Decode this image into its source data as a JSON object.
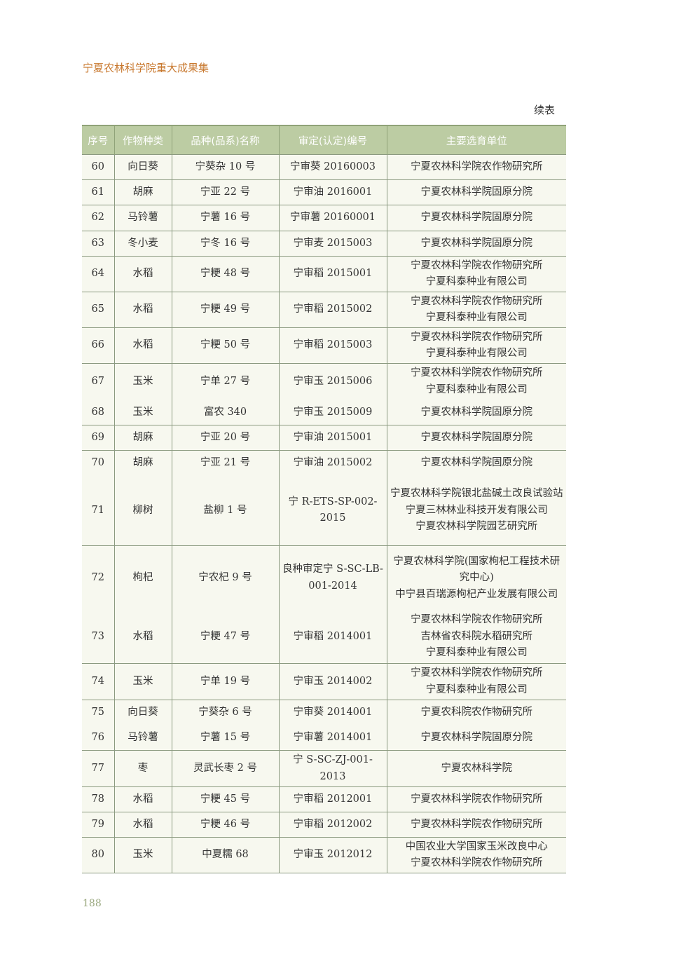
{
  "running_header": "宁夏农林科学院重大成果集",
  "continued_label": "续表",
  "page_number": "188",
  "table": {
    "headers": [
      "序号",
      "作物种类",
      "品种(品系)名称",
      "审定(认定)编号",
      "主要选育单位"
    ],
    "rows": [
      [
        "60",
        "向日葵",
        "宁葵杂 10 号",
        "宁审葵 20160003",
        [
          "宁夏农林科学院农作物研究所"
        ]
      ],
      [
        "61",
        "胡麻",
        "宁亚 22 号",
        "宁审油 2016001",
        [
          "宁夏农林科学院固原分院"
        ]
      ],
      [
        "62",
        "马铃薯",
        "宁薯 16 号",
        "宁审薯 20160001",
        [
          "宁夏农林科学院固原分院"
        ]
      ],
      [
        "63",
        "冬小麦",
        "宁冬 16 号",
        "宁审麦 2015003",
        [
          "宁夏农林科学院固原分院"
        ]
      ],
      [
        "64",
        "水稻",
        "宁粳 48 号",
        "宁审稻 2015001",
        [
          "宁夏农林科学院农作物研究所",
          "宁夏科泰种业有限公司"
        ]
      ],
      [
        "65",
        "水稻",
        "宁粳 49 号",
        "宁审稻 2015002",
        [
          "宁夏农林科学院农作物研究所",
          "宁夏科泰种业有限公司"
        ]
      ],
      [
        "66",
        "水稻",
        "宁粳 50 号",
        "宁审稻 2015003",
        [
          "宁夏农林科学院农作物研究所",
          "宁夏科泰种业有限公司"
        ]
      ],
      [
        "67",
        "玉米",
        "宁单 27 号",
        "宁审玉 2015006",
        [
          "宁夏农林科学院农作物研究所",
          "宁夏科泰种业有限公司"
        ]
      ],
      [
        "68",
        "玉米",
        "富农 340",
        "宁审玉 2015009",
        [
          "宁夏农林科学院固原分院"
        ]
      ],
      [
        "69",
        "胡麻",
        "宁亚 20 号",
        "宁审油 2015001",
        [
          "宁夏农林科学院固原分院"
        ]
      ],
      [
        "70",
        "胡麻",
        "宁亚 21 号",
        "宁审油 2015002",
        [
          "宁夏农林科学院固原分院"
        ]
      ],
      [
        "71",
        "柳树",
        "盐柳 1 号",
        "宁 R-ETS-SP-002-2015",
        [
          "宁夏农林科学院银北盐碱土改良试验站",
          "宁夏三林林业科技开发有限公司",
          "宁夏农林科学院园艺研究所"
        ]
      ],
      [
        "72",
        "枸杞",
        "宁农杞 9 号",
        "良种审定宁 S-SC-LB-001-2014",
        [
          "宁夏农林科学院(国家枸杞工程技术研究中心)",
          "中宁县百瑞源枸杞产业发展有限公司"
        ]
      ],
      [
        "73",
        "水稻",
        "宁粳 47 号",
        "宁审稻 2014001",
        [
          "宁夏农林科学院农作物研究所",
          "吉林省农科院水稻研究所",
          "宁夏科泰种业有限公司"
        ]
      ],
      [
        "74",
        "玉米",
        "宁单 19 号",
        "宁审玉 2014002",
        [
          "宁夏农林科学院农作物研究所",
          "宁夏科泰种业有限公司"
        ]
      ],
      [
        "75",
        "向日葵",
        "宁葵杂 6 号",
        "宁审葵 2014001",
        [
          "宁夏农科院农作物研究所"
        ]
      ],
      [
        "76",
        "马铃薯",
        "宁薯 15 号",
        "宁审薯 2014001",
        [
          "宁夏农林科学院固原分院"
        ]
      ],
      [
        "77",
        "枣",
        "灵武长枣 2 号",
        "宁 S-SC-ZJ-001-2013",
        [
          "宁夏农林科学院"
        ]
      ],
      [
        "78",
        "水稻",
        "宁粳 45 号",
        "宁审稻 2012001",
        [
          "宁夏农林科学院农作物研究所"
        ]
      ],
      [
        "79",
        "水稻",
        "宁粳 46 号",
        "宁审稻 2012002",
        [
          "宁夏农林科学院农作物研究所"
        ]
      ],
      [
        "80",
        "玉米",
        "中夏糯 68",
        "宁审玉 2012012",
        [
          "中国农业大学国家玉米改良中心",
          "宁夏农林科学院农作物研究所"
        ]
      ]
    ]
  }
}
